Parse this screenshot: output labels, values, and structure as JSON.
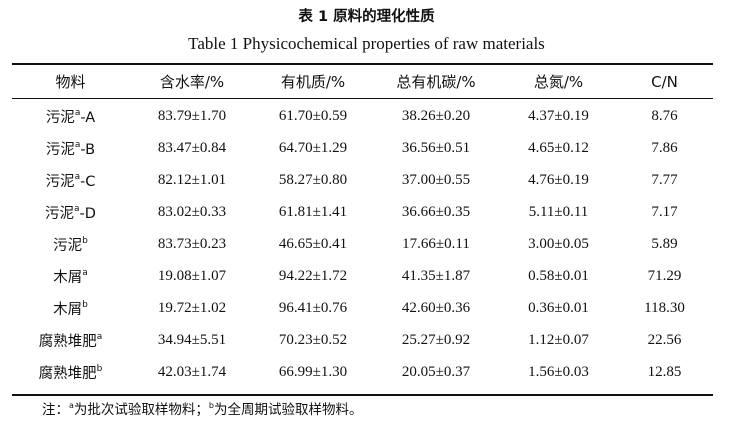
{
  "title_cn": "表 1  原料的理化性质",
  "title_en": "Table 1  Physicochemical properties of raw materials",
  "table": {
    "headers": [
      "物料",
      "含水率/%",
      "有机质/%",
      "总有机碳/%",
      "总氮/%",
      "C/N"
    ],
    "rows": [
      {
        "name": "污泥",
        "sup": "a",
        "suffix": "-A",
        "values": [
          "83.79±1.70",
          "61.70±0.59",
          "38.26±0.20",
          "4.37±0.19",
          "8.76"
        ]
      },
      {
        "name": "污泥",
        "sup": "a",
        "suffix": "-B",
        "values": [
          "83.47±0.84",
          "64.70±1.29",
          "36.56±0.51",
          "4.65±0.12",
          "7.86"
        ]
      },
      {
        "name": "污泥",
        "sup": "a",
        "suffix": "-C",
        "values": [
          "82.12±1.01",
          "58.27±0.80",
          "37.00±0.55",
          "4.76±0.19",
          "7.77"
        ]
      },
      {
        "name": "污泥",
        "sup": "a",
        "suffix": "-D",
        "values": [
          "83.02±0.33",
          "61.81±1.41",
          "36.66±0.35",
          "5.11±0.11",
          "7.17"
        ]
      },
      {
        "name": "污泥",
        "sup": "b",
        "suffix": "",
        "values": [
          "83.73±0.23",
          "46.65±0.41",
          "17.66±0.11",
          "3.00±0.05",
          "5.89"
        ]
      },
      {
        "name": "木屑",
        "sup": "a",
        "suffix": "",
        "values": [
          "19.08±1.07",
          "94.22±1.72",
          "41.35±1.87",
          "0.58±0.01",
          "71.29"
        ]
      },
      {
        "name": "木屑",
        "sup": "b",
        "suffix": "",
        "values": [
          "19.72±1.02",
          "96.41±0.76",
          "42.60±0.36",
          "0.36±0.01",
          "118.30"
        ]
      },
      {
        "name": "腐熟堆肥",
        "sup": "a",
        "suffix": "",
        "values": [
          "34.94±5.51",
          "70.23±0.52",
          "25.27±0.92",
          "1.12±0.07",
          "22.56"
        ]
      },
      {
        "name": "腐熟堆肥",
        "sup": "b",
        "suffix": "",
        "values": [
          "42.03±1.74",
          "66.99±1.30",
          "20.05±0.37",
          "1.56±0.03",
          "12.85"
        ]
      }
    ]
  },
  "note": {
    "prefix": "注：",
    "sup_a": "a",
    "text_a": "为批次试验取样物料；",
    "sup_b": "b",
    "text_b": "为全周期试验取样物料。"
  }
}
